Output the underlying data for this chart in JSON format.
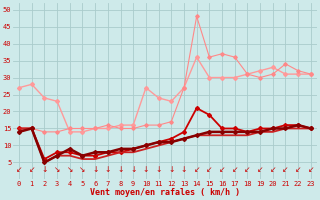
{
  "x": [
    0,
    1,
    2,
    3,
    4,
    5,
    6,
    7,
    8,
    9,
    10,
    11,
    12,
    13,
    14,
    15,
    16,
    17,
    18,
    19,
    20,
    21,
    22,
    23
  ],
  "background_color": "#ceeaea",
  "grid_color": "#aacccc",
  "xlabel": "Vent moyen/en rafales ( km/h )",
  "xlabel_color": "#cc0000",
  "ylim": [
    0,
    52
  ],
  "yticks": [
    5,
    10,
    15,
    20,
    25,
    30,
    35,
    40,
    45,
    50
  ],
  "series": [
    {
      "y": [
        27,
        28,
        24,
        23,
        14,
        14,
        15,
        15,
        16,
        16,
        27,
        24,
        23,
        27,
        36,
        30,
        30,
        30,
        31,
        32,
        33,
        31,
        31,
        31
      ],
      "color": "#ff9999",
      "linewidth": 1.0,
      "marker": "D",
      "markersize": 2.0
    },
    {
      "y": [
        15,
        15,
        14,
        14,
        15,
        15,
        15,
        16,
        15,
        15,
        16,
        16,
        17,
        27,
        48,
        36,
        37,
        36,
        31,
        30,
        31,
        34,
        32,
        31
      ],
      "color": "#ff8888",
      "linewidth": 0.8,
      "marker": "D",
      "markersize": 1.8
    },
    {
      "y": [
        15,
        15,
        6,
        8,
        8,
        7,
        7,
        8,
        8,
        9,
        10,
        11,
        12,
        14,
        21,
        19,
        15,
        15,
        14,
        15,
        15,
        16,
        16,
        15
      ],
      "color": "#cc0000",
      "linewidth": 1.3,
      "marker": "D",
      "markersize": 2.0
    },
    {
      "y": [
        15,
        15,
        5,
        7,
        7,
        6,
        6,
        7,
        8,
        8,
        9,
        10,
        11,
        12,
        13,
        13,
        13,
        13,
        13,
        14,
        14,
        15,
        15,
        15
      ],
      "color": "#cc2222",
      "linewidth": 1.3,
      "marker": null,
      "markersize": 0
    },
    {
      "y": [
        14,
        15,
        5,
        7,
        9,
        7,
        8,
        8,
        9,
        9,
        10,
        11,
        11,
        12,
        13,
        14,
        14,
        14,
        14,
        14,
        15,
        15,
        16,
        15
      ],
      "color": "#880000",
      "linewidth": 1.8,
      "marker": "D",
      "markersize": 2.0
    }
  ],
  "wind_arrows": [
    225,
    202,
    180,
    157,
    135,
    157,
    180,
    180,
    180,
    180,
    180,
    180,
    180,
    180,
    202,
    225,
    225,
    225,
    225,
    225,
    225,
    225,
    225,
    225
  ],
  "arrow_color": "#cc0000",
  "tick_color": "#cc0000",
  "label_fontsize": 5.0,
  "xlabel_fontsize": 6.0
}
